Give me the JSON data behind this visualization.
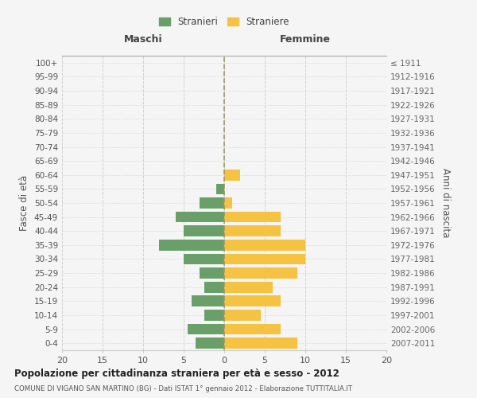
{
  "age_groups": [
    "0-4",
    "5-9",
    "10-14",
    "15-19",
    "20-24",
    "25-29",
    "30-34",
    "35-39",
    "40-44",
    "45-49",
    "50-54",
    "55-59",
    "60-64",
    "65-69",
    "70-74",
    "75-79",
    "80-84",
    "85-89",
    "90-94",
    "95-99",
    "100+"
  ],
  "birth_years": [
    "2007-2011",
    "2002-2006",
    "1997-2001",
    "1992-1996",
    "1987-1991",
    "1982-1986",
    "1977-1981",
    "1972-1976",
    "1967-1971",
    "1962-1966",
    "1957-1961",
    "1952-1956",
    "1947-1951",
    "1942-1946",
    "1937-1941",
    "1932-1936",
    "1927-1931",
    "1922-1926",
    "1917-1921",
    "1912-1916",
    "≤ 1911"
  ],
  "males": [
    3.5,
    4.5,
    2.5,
    4,
    2.5,
    3,
    5,
    8,
    5,
    6,
    3,
    1,
    0,
    0,
    0,
    0,
    0,
    0,
    0,
    0,
    0
  ],
  "females": [
    9,
    7,
    4.5,
    7,
    6,
    9,
    10,
    10,
    7,
    7,
    1,
    0,
    2,
    0,
    0,
    0,
    0,
    0,
    0,
    0,
    0
  ],
  "male_color": "#6a9f6a",
  "female_color": "#f5c242",
  "background_color": "#f5f5f5",
  "grid_color": "#cccccc",
  "xlim": 20,
  "title": "Popolazione per cittadinanza straniera per età e sesso - 2012",
  "subtitle": "COMUNE DI VIGANO SAN MARTINO (BG) - Dati ISTAT 1° gennaio 2012 - Elaborazione TUTTITALIA.IT",
  "left_label": "Maschi",
  "right_label": "Femmine",
  "y_label": "Fasce di età",
  "right_y_label": "Anni di nascita",
  "legend_male": "Stranieri",
  "legend_female": "Straniere",
  "center_line_color": "#999966",
  "header_line_color": "#aaaaaa"
}
